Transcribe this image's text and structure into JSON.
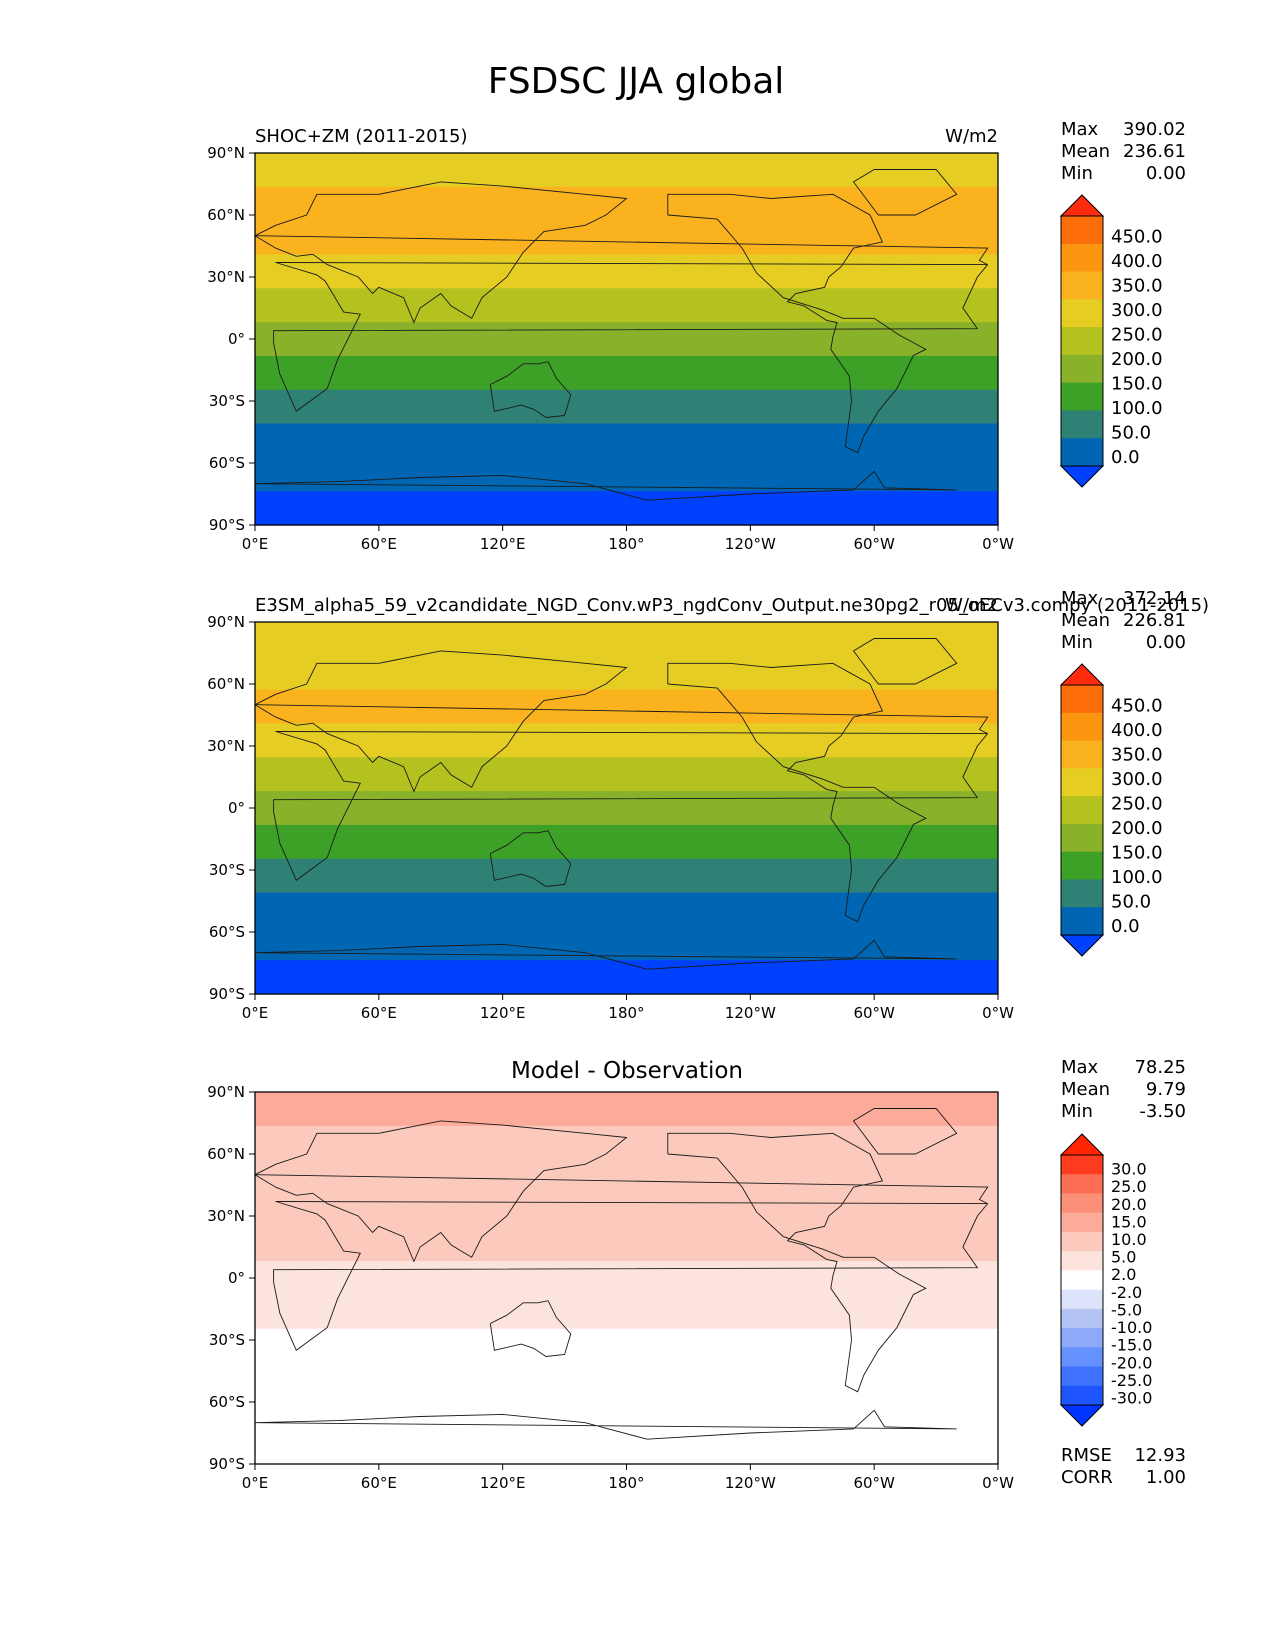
{
  "figure": {
    "title": "FSDSC JJA global"
  },
  "colors": {
    "abs_levels": [
      "#0041ff",
      "#0066b3",
      "#2f8176",
      "#3ea127",
      "#89b22a",
      "#b3c21e",
      "#e6cd23",
      "#fab31f",
      "#fc9610",
      "#fc6c09",
      "#ff2b0e"
    ],
    "diff_levels": [
      "#0033ff",
      "#1f55ff",
      "#3f72ff",
      "#6590ff",
      "#8ea9f7",
      "#b3c4f4",
      "#dde3fb",
      "#ffffff",
      "#fde3de",
      "#fccabd",
      "#fcab9b",
      "#fc8f78",
      "#fc6e55",
      "#ff3c1f",
      "#ff2500"
    ]
  },
  "chart_data": [
    {
      "type": "heatmap",
      "title_left": "SHOC+ZM (2011-2015)",
      "title_right": "W/m2",
      "title_center": "",
      "stats": {
        "max_label": "Max",
        "max": "390.02",
        "mean_label": "Mean",
        "mean": "236.61",
        "min_label": "Min",
        "min": "0.00"
      },
      "colorbar_ticks": [
        "450.0",
        "400.0",
        "350.0",
        "300.0",
        "250.0",
        "200.0",
        "150.0",
        "100.0",
        "50.0",
        "0.0"
      ],
      "xticks": [
        "0°E",
        "60°E",
        "120°E",
        "180°",
        "120°W",
        "60°W",
        "0°W"
      ],
      "yticks": [
        "90°N",
        "60°N",
        "30°N",
        "0°",
        "30°S",
        "60°S",
        "90°S"
      ],
      "zonal_band_levels": [
        6,
        7,
        7,
        6,
        5,
        4,
        3,
        2,
        1,
        1,
        0
      ]
    },
    {
      "type": "heatmap",
      "title_left": "E3SM_alpha5_59_v2candidate_NGD_Conv.wP3_ngdConv_Output.ne30pg2_r05_oECv3.compy (2011-2015)",
      "title_right": "W/m2",
      "title_center": "",
      "stats": {
        "max_label": "Max",
        "max": "372.14",
        "mean_label": "Mean",
        "mean": "226.81",
        "min_label": "Min",
        "min": "0.00"
      },
      "colorbar_ticks": [
        "450.0",
        "400.0",
        "350.0",
        "300.0",
        "250.0",
        "200.0",
        "150.0",
        "100.0",
        "50.0",
        "0.0"
      ],
      "xticks": [
        "0°E",
        "60°E",
        "120°E",
        "180°",
        "120°W",
        "60°W",
        "0°W"
      ],
      "yticks": [
        "90°N",
        "60°N",
        "30°N",
        "0°",
        "30°S",
        "60°S",
        "90°S"
      ],
      "zonal_band_levels": [
        6,
        6,
        7,
        6,
        5,
        4,
        3,
        2,
        1,
        1,
        0
      ]
    },
    {
      "type": "heatmap",
      "title_left": "",
      "title_right": "",
      "title_center": "Model - Observation",
      "stats": {
        "max_label": "Max",
        "max": "78.25",
        "mean_label": "Mean",
        "mean": "9.79",
        "min_label": "Min",
        "min": "-3.50"
      },
      "colorbar_ticks": [
        "30.0",
        "25.0",
        "20.0",
        "15.0",
        "10.0",
        "5.0",
        "2.0",
        "-2.0",
        "-5.0",
        "-10.0",
        "-15.0",
        "-20.0",
        "-25.0",
        "-30.0"
      ],
      "xticks": [
        "0°E",
        "60°E",
        "120°E",
        "180°",
        "120°W",
        "60°W",
        "0°W"
      ],
      "yticks": [
        "90°N",
        "60°N",
        "30°N",
        "0°",
        "30°S",
        "60°S",
        "90°S"
      ],
      "zonal_band_levels": [
        10,
        9,
        9,
        9,
        9,
        8,
        8,
        7,
        7,
        7,
        7
      ],
      "metrics": {
        "rmse_label": "RMSE",
        "rmse": "12.93",
        "corr_label": "CORR",
        "corr": "1.00"
      }
    }
  ]
}
